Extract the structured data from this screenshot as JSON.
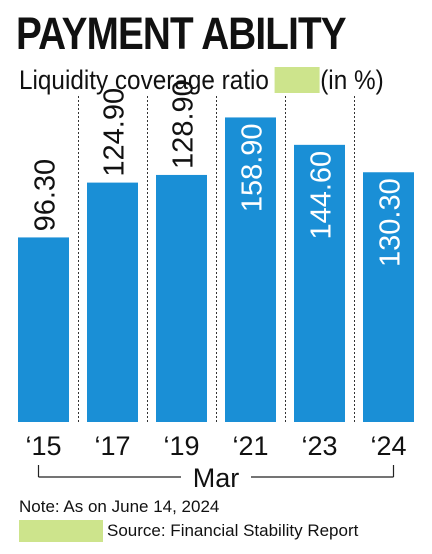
{
  "title": "PAYMENT ABILITY",
  "subtitle": "Liquidity coverage ratio",
  "unit_label": "(in %)",
  "note": "Note: As on June 14, 2024",
  "source": "Source: Financial Stability Report",
  "colors": {
    "bar": "#1a8fd6",
    "highlight": "#cde48c",
    "text_dark": "#111111",
    "text_light": "#ffffff"
  },
  "chart_data": {
    "type": "bar",
    "categories": [
      "‘15",
      "‘17",
      "‘19",
      "‘21",
      "‘23",
      "‘24"
    ],
    "values": [
      96.3,
      124.9,
      128.9,
      158.9,
      144.6,
      130.3
    ],
    "value_labels": [
      "96.30",
      "124.90",
      "128.90",
      "158.90",
      "144.60",
      "130.30"
    ],
    "label_inside": [
      false,
      false,
      false,
      true,
      true,
      true
    ],
    "group_label": "Mar",
    "ylim": [
      0,
      168
    ],
    "grid": false,
    "xlabel": "",
    "ylabel": ""
  }
}
